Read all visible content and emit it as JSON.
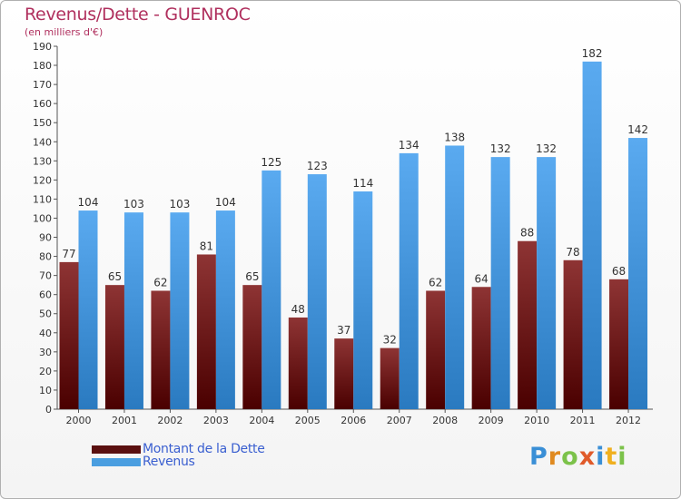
{
  "chart_data": {
    "type": "bar",
    "title": "Revenus/Dette - GUENROC",
    "subtitle": "(en milliers d'€)",
    "xlabel": "",
    "ylabel": "",
    "ylim": [
      0,
      190
    ],
    "ytick_step": 10,
    "grid": false,
    "categories": [
      "2000",
      "2001",
      "2002",
      "2003",
      "2004",
      "2005",
      "2006",
      "2007",
      "2008",
      "2009",
      "2010",
      "2011",
      "2012"
    ],
    "series": [
      {
        "name": "Montant de la Dette",
        "color": "#7a1a1a",
        "values": [
          77,
          65,
          62,
          81,
          65,
          48,
          37,
          32,
          62,
          64,
          88,
          78,
          68
        ]
      },
      {
        "name": "Revenus",
        "color": "#4a9ee0",
        "values": [
          104,
          103,
          103,
          104,
          125,
          123,
          114,
          134,
          138,
          132,
          132,
          182,
          142
        ]
      }
    ],
    "legend_position": "bottom-left"
  },
  "logo": {
    "letters": [
      "P",
      "r",
      "o",
      "x",
      "i",
      "t",
      "i"
    ],
    "colors": [
      "#3a8fd6",
      "#e08a20",
      "#7cc24a",
      "#e05a2a",
      "#3a8fd6",
      "#f0b020",
      "#7cc24a"
    ]
  }
}
